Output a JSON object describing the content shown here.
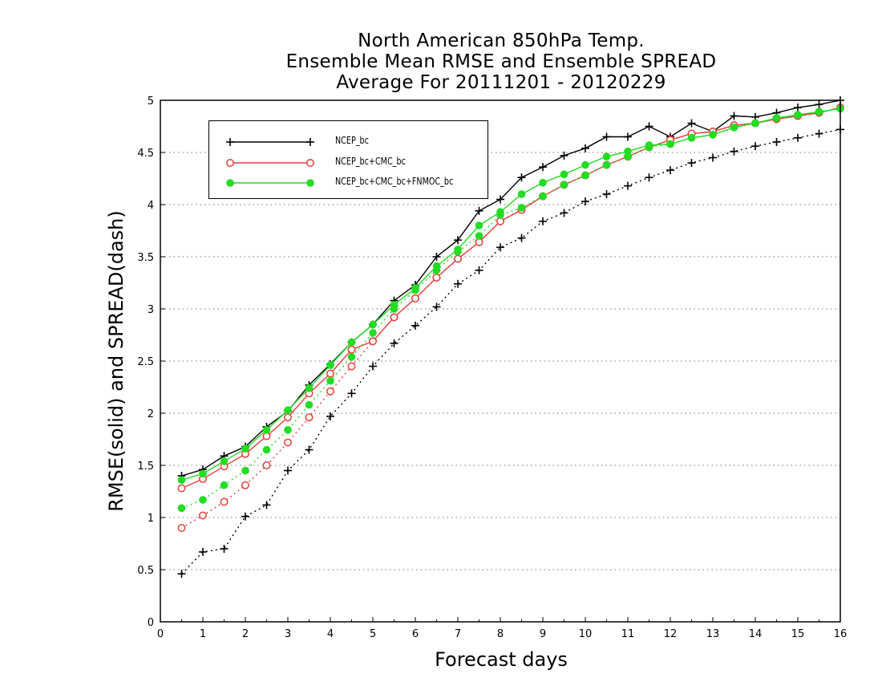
{
  "chart_data": {
    "type": "line",
    "title_lines": [
      "North American 850hPa Temp.",
      "Ensemble Mean RMSE and Ensemble SPREAD",
      "Average For 20111201 - 20120229"
    ],
    "xlabel": "Forecast days",
    "ylabel": "RMSE(solid) and SPREAD(dash)",
    "xlim": [
      0,
      16
    ],
    "ylim": [
      0,
      5
    ],
    "x_ticks": [
      "0",
      "1",
      "2",
      "3",
      "4",
      "5",
      "6",
      "7",
      "8",
      "9",
      "10",
      "11",
      "12",
      "13",
      "14",
      "15",
      "16"
    ],
    "y_ticks": [
      "0",
      "0.5",
      "1",
      "1.5",
      "2",
      "2.5",
      "3",
      "3.5",
      "4",
      "4.5",
      "5"
    ],
    "y_tick_values": [
      0,
      0.5,
      1,
      1.5,
      2,
      2.5,
      3,
      3.5,
      4,
      4.5,
      5
    ],
    "grid": "horizontal dotted",
    "legend_position": "top-left",
    "x": [
      0.5,
      1,
      1.5,
      2,
      2.5,
      3,
      3.5,
      4,
      4.5,
      5,
      5.5,
      6,
      6.5,
      7,
      7.5,
      8,
      8.5,
      9,
      9.5,
      10,
      10.5,
      11,
      11.5,
      12,
      12.5,
      13,
      13.5,
      14,
      14.5,
      15,
      15.5,
      16
    ],
    "series": [
      {
        "name": "NCEP_bc",
        "color": "#000000",
        "marker": "plus",
        "rmse": [
          1.4,
          1.46,
          1.59,
          1.68,
          1.87,
          2.02,
          2.27,
          2.47,
          2.68,
          2.85,
          3.08,
          3.23,
          3.5,
          3.66,
          3.94,
          4.05,
          4.26,
          4.36,
          4.47,
          4.54,
          4.65,
          4.65,
          4.75,
          4.65,
          4.78,
          4.7,
          4.85,
          4.84,
          4.88,
          4.93,
          4.96,
          5.0
        ],
        "spread": [
          0.46,
          0.67,
          0.7,
          1.01,
          1.12,
          1.45,
          1.65,
          1.97,
          2.19,
          2.45,
          2.67,
          2.84,
          3.02,
          3.24,
          3.37,
          3.59,
          3.68,
          3.84,
          3.92,
          4.03,
          4.1,
          4.18,
          4.26,
          4.33,
          4.4,
          4.45,
          4.51,
          4.56,
          4.6,
          4.64,
          4.68,
          4.72
        ]
      },
      {
        "name": "NCEP_bc+CMC_bc",
        "color": "#e8403a",
        "marker": "open-circle",
        "rmse": [
          1.28,
          1.37,
          1.49,
          1.61,
          1.78,
          1.96,
          2.19,
          2.38,
          2.61,
          2.69,
          2.92,
          3.1,
          3.3,
          3.48,
          3.64,
          3.84,
          3.95,
          4.08,
          4.19,
          4.28,
          4.38,
          4.46,
          4.55,
          4.62,
          4.68,
          4.7,
          4.76,
          4.78,
          4.82,
          4.85,
          4.88,
          4.93
        ],
        "spread": [
          0.9,
          1.02,
          1.15,
          1.31,
          1.5,
          1.72,
          1.96,
          2.21,
          2.45,
          2.69,
          2.92,
          3.1,
          3.3,
          3.48,
          3.64,
          3.84,
          3.95,
          4.08,
          4.19,
          4.28,
          4.38,
          4.46,
          4.55,
          4.62,
          4.68,
          4.7,
          4.76,
          4.78,
          4.82,
          4.85,
          4.88,
          4.93
        ]
      },
      {
        "name": "NCEP_bc+CMC_bc+FNMOC_bc",
        "color": "#22dd22",
        "marker": "filled-circle",
        "rmse": [
          1.36,
          1.42,
          1.54,
          1.66,
          1.84,
          2.03,
          2.24,
          2.46,
          2.68,
          2.85,
          3.04,
          3.2,
          3.41,
          3.57,
          3.8,
          3.93,
          4.1,
          4.21,
          4.29,
          4.38,
          4.46,
          4.51,
          4.57,
          4.58,
          4.64,
          4.67,
          4.74,
          4.78,
          4.83,
          4.86,
          4.89,
          4.92
        ],
        "spread": [
          1.09,
          1.17,
          1.31,
          1.45,
          1.65,
          1.84,
          2.08,
          2.31,
          2.54,
          2.77,
          3.0,
          3.18,
          3.37,
          3.55,
          3.7,
          3.9,
          3.97,
          4.08,
          4.19,
          4.28,
          4.38,
          4.46,
          4.55,
          4.58,
          4.64,
          4.67,
          4.74,
          4.78,
          4.83,
          4.86,
          4.89,
          4.92
        ]
      }
    ]
  }
}
